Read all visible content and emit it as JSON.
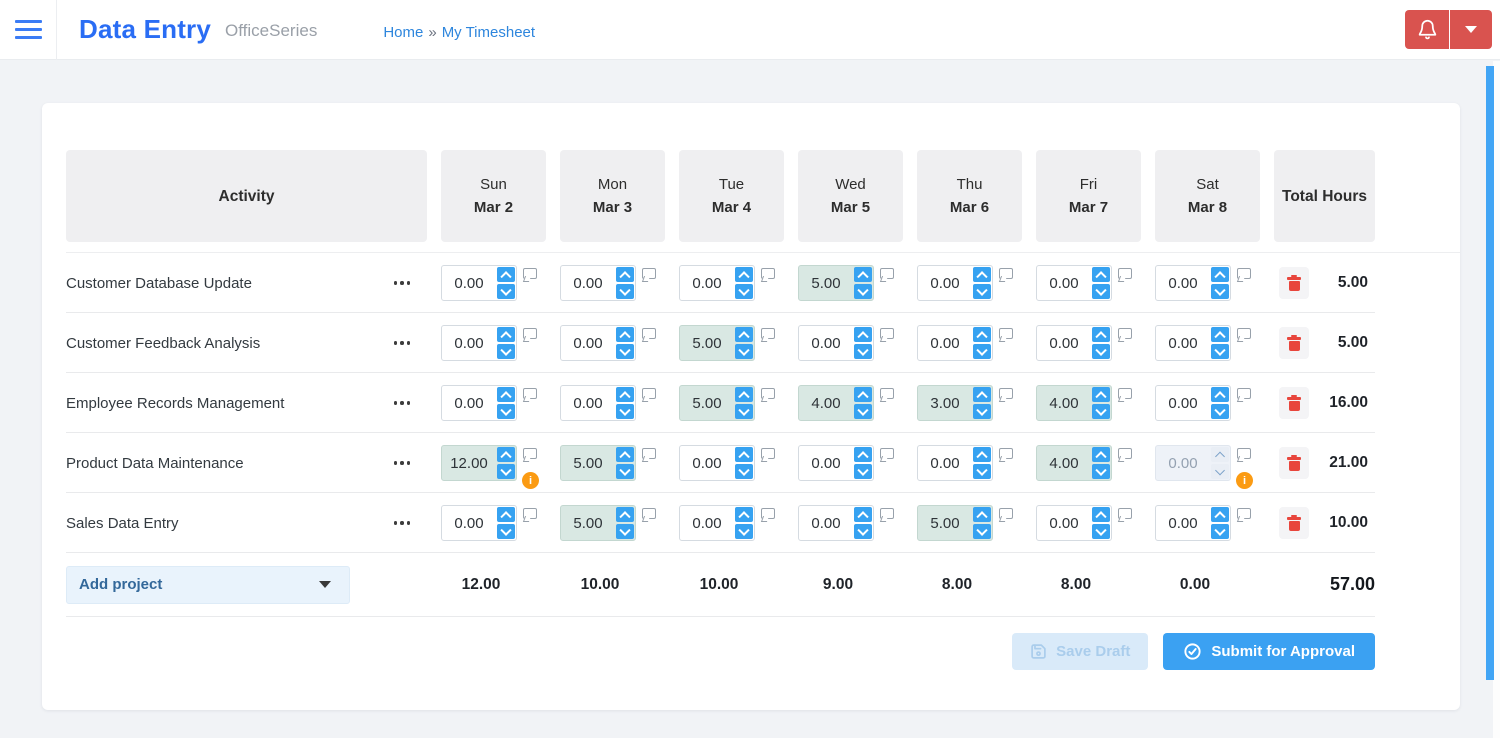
{
  "topbar": {
    "title": "Data Entry",
    "subtitle": "OfficeSeries",
    "breadcrumb": {
      "home": "Home",
      "separator": "»",
      "current": "My Timesheet"
    }
  },
  "timesheet": {
    "columns": {
      "activity": "Activity",
      "days": [
        {
          "day": "Sun",
          "date": "Mar 2"
        },
        {
          "day": "Mon",
          "date": "Mar 3"
        },
        {
          "day": "Tue",
          "date": "Mar 4"
        },
        {
          "day": "Wed",
          "date": "Mar 5"
        },
        {
          "day": "Thu",
          "date": "Mar 6"
        },
        {
          "day": "Fri",
          "date": "Mar 7"
        },
        {
          "day": "Sat",
          "date": "Mar 8"
        }
      ],
      "total": "Total Hours"
    },
    "rows": [
      {
        "activity": "Customer Database Update",
        "cells": [
          {
            "value": "0.00",
            "state": "default",
            "info": false
          },
          {
            "value": "0.00",
            "state": "default",
            "info": false
          },
          {
            "value": "0.00",
            "state": "default",
            "info": false
          },
          {
            "value": "5.00",
            "state": "filled",
            "info": false
          },
          {
            "value": "0.00",
            "state": "default",
            "info": false
          },
          {
            "value": "0.00",
            "state": "default",
            "info": false
          },
          {
            "value": "0.00",
            "state": "default",
            "info": false
          }
        ],
        "total": "5.00"
      },
      {
        "activity": "Customer Feedback Analysis",
        "cells": [
          {
            "value": "0.00",
            "state": "default",
            "info": false
          },
          {
            "value": "0.00",
            "state": "default",
            "info": false
          },
          {
            "value": "5.00",
            "state": "filled",
            "info": false
          },
          {
            "value": "0.00",
            "state": "default",
            "info": false
          },
          {
            "value": "0.00",
            "state": "default",
            "info": false
          },
          {
            "value": "0.00",
            "state": "default",
            "info": false
          },
          {
            "value": "0.00",
            "state": "default",
            "info": false
          }
        ],
        "total": "5.00"
      },
      {
        "activity": "Employee Records Management",
        "cells": [
          {
            "value": "0.00",
            "state": "default",
            "info": false
          },
          {
            "value": "0.00",
            "state": "default",
            "info": false
          },
          {
            "value": "5.00",
            "state": "filled",
            "info": false
          },
          {
            "value": "4.00",
            "state": "filled",
            "info": false
          },
          {
            "value": "3.00",
            "state": "filled",
            "info": false
          },
          {
            "value": "4.00",
            "state": "filled",
            "info": false
          },
          {
            "value": "0.00",
            "state": "default",
            "info": false
          }
        ],
        "total": "16.00"
      },
      {
        "activity": "Product Data Maintenance",
        "cells": [
          {
            "value": "12.00",
            "state": "filled",
            "info": true
          },
          {
            "value": "5.00",
            "state": "filled",
            "info": false
          },
          {
            "value": "0.00",
            "state": "default",
            "info": false
          },
          {
            "value": "0.00",
            "state": "default",
            "info": false
          },
          {
            "value": "0.00",
            "state": "default",
            "info": false
          },
          {
            "value": "4.00",
            "state": "filled",
            "info": false
          },
          {
            "value": "0.00",
            "state": "disabled",
            "info": true
          }
        ],
        "total": "21.00"
      },
      {
        "activity": "Sales Data Entry",
        "cells": [
          {
            "value": "0.00",
            "state": "default",
            "info": false
          },
          {
            "value": "5.00",
            "state": "filled",
            "info": false
          },
          {
            "value": "0.00",
            "state": "default",
            "info": false
          },
          {
            "value": "0.00",
            "state": "default",
            "info": false
          },
          {
            "value": "5.00",
            "state": "filled",
            "info": false
          },
          {
            "value": "0.00",
            "state": "default",
            "info": false
          },
          {
            "value": "0.00",
            "state": "default",
            "info": false
          }
        ],
        "total": "10.00"
      }
    ],
    "footer": {
      "add_project_label": "Add project",
      "day_totals": [
        "12.00",
        "10.00",
        "10.00",
        "9.00",
        "8.00",
        "8.00",
        "0.00"
      ],
      "grand_total": "57.00"
    },
    "actions": {
      "save_draft": "Save Draft",
      "submit": "Submit for Approval"
    },
    "info_icon_glyph": "i"
  },
  "colors": {
    "accent_blue": "#3ba1f2",
    "title_blue": "#2a6df4",
    "link_blue": "#2e86dd",
    "danger_red": "#d9534f",
    "trash_red": "#e8453c",
    "filled_cell": "#d9e8e3",
    "info_orange": "#fb9b13",
    "scrollbar_blue": "#42a5f5"
  }
}
